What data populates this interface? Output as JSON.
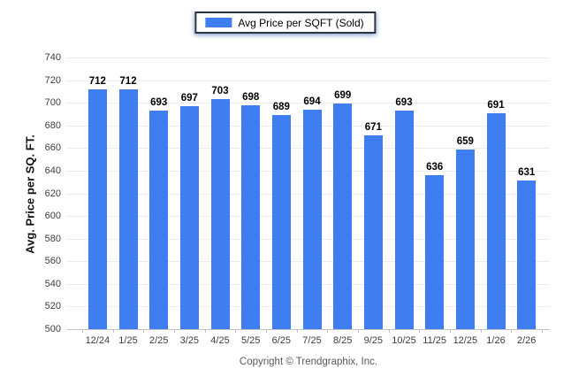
{
  "legend": {
    "label": "Avg Price per SQFT (Sold)"
  },
  "footer": {
    "text": "Copyright © Trendgraphix, Inc."
  },
  "colors": {
    "bar": "#3e7ef0",
    "gridline": "#ececec",
    "axis_line": "#c2c2c2",
    "tick_text": "#3d3d3d",
    "value_label": "#000000",
    "footer_text": "#5a5a5a",
    "legend_border": "#2c3442"
  },
  "chart_data": {
    "type": "bar",
    "title": "",
    "xlabel": "",
    "ylabel": "Avg. Price per SQ. FT.",
    "categories": [
      "12/24",
      "1/25",
      "2/25",
      "3/25",
      "4/25",
      "5/25",
      "6/25",
      "7/25",
      "8/25",
      "9/25",
      "10/25",
      "11/25",
      "12/25",
      "1/26",
      "2/26"
    ],
    "values": [
      712,
      712,
      693,
      697,
      703,
      698,
      689,
      694,
      699,
      671,
      693,
      636,
      659,
      691,
      631
    ],
    "series_name": "Avg Price per SQFT (Sold)",
    "ylim": [
      500,
      740
    ],
    "ytick_step": 20,
    "grid": true,
    "legend_position": "top-center",
    "bar_color": "#3e7ef0",
    "value_labels_shown": true
  }
}
